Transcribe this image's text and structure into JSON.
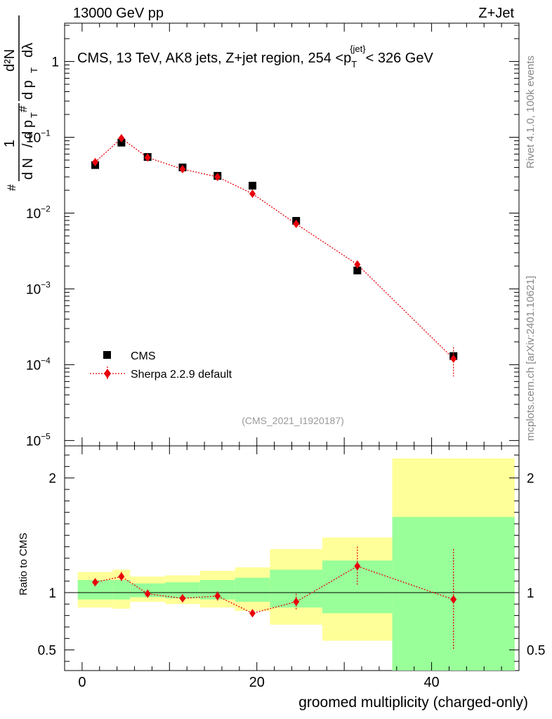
{
  "header": {
    "left": "13000 GeV pp",
    "right": "Z+Jet"
  },
  "side_labels": {
    "top": "Rivet 4.1.0,  100k events",
    "bottom": "mcplots.cern.ch [arXiv:2401.10621]"
  },
  "chart_data": {
    "type": "scatter",
    "title": "CMS, 13 TeV, AK8 jets, Z+jet region, 254 <p_T^{jet}< 326 GeV",
    "title_main": "CMS, 13 TeV, AK8 jets, Z+jet region, 254 <p",
    "title_sub": "T",
    "title_sup": "{jet}",
    "title_tail": "< 326 GeV",
    "analysis_tag": "(CMS_2021_I1920187)",
    "xlabel": "groomed multiplicity (charged-only)",
    "ylabel_main": "1 / N  dN / d p_T  d²N / d p_T dλ",
    "ylabel_parts": {
      "hash": "#",
      "one": "1",
      "dN": "d N",
      "slash": "/",
      "d": "d",
      "p": "p",
      "T": "T",
      "d2N": "d²N",
      "dpT": "d p",
      "dlambda": "dλ"
    },
    "ylabel_ratio": "Ratio to CMS",
    "xlim": [
      -2,
      50
    ],
    "ylim_main": [
      8.5e-06,
      3.2
    ],
    "ylim_ratio": [
      0.32,
      2.28
    ],
    "x_ticks": [
      {
        "value": 0,
        "label": "0"
      },
      {
        "value": 20,
        "label": "20"
      },
      {
        "value": 40,
        "label": "40"
      }
    ],
    "y_ticks_main": [
      {
        "value": 1,
        "base": "1",
        "exp": ""
      },
      {
        "value": 0.1,
        "base": "10",
        "exp": "−1"
      },
      {
        "value": 0.01,
        "base": "10",
        "exp": "−2"
      },
      {
        "value": 0.001,
        "base": "10",
        "exp": "−3"
      },
      {
        "value": 0.0001,
        "base": "10",
        "exp": "−4"
      },
      {
        "value": 1e-05,
        "base": "10",
        "exp": "−5"
      }
    ],
    "y_ticks_ratio": [
      {
        "value": 2,
        "label": "2"
      },
      {
        "value": 1,
        "label": "1"
      },
      {
        "value": 0.5,
        "label": "0.5"
      }
    ],
    "legend": {
      "placement": "lower-left",
      "entries": [
        {
          "label": "CMS",
          "marker": "square",
          "color": "#000000"
        },
        {
          "label": "Sherpa 2.2.9 default",
          "marker": "diamond",
          "color": "#e8000b"
        }
      ]
    },
    "series": [
      {
        "name": "CMS",
        "color": "#000000",
        "x": [
          1.5,
          4.5,
          7.5,
          11.5,
          15.5,
          19.5,
          24.5,
          31.5,
          42.5
        ],
        "y": [
          0.043,
          0.085,
          0.055,
          0.04,
          0.031,
          0.023,
          0.0079,
          0.00175,
          0.00013
        ]
      },
      {
        "name": "Sherpa 2.2.9 default",
        "color": "#e8000b",
        "x": [
          1.5,
          4.5,
          7.5,
          11.5,
          15.5,
          19.5,
          24.5,
          31.5,
          42.5
        ],
        "y": [
          0.047,
          0.097,
          0.054,
          0.038,
          0.03,
          0.018,
          0.0072,
          0.0021,
          0.00012
        ],
        "y_err": [
          0.0015,
          0.003,
          0.0015,
          0.001,
          0.0009,
          0.0006,
          0.0003,
          0.00015,
          5e-05
        ]
      }
    ],
    "ratio": {
      "x": [
        1.5,
        4.5,
        7.5,
        11.5,
        15.5,
        19.5,
        24.5,
        31.5,
        42.5
      ],
      "sherpa": [
        1.09,
        1.14,
        0.99,
        0.95,
        0.97,
        0.82,
        0.92,
        1.23,
        0.94
      ],
      "err": [
        0.035,
        0.04,
        0.035,
        0.035,
        0.04,
        0.035,
        0.07,
        0.17,
        0.44
      ],
      "bins": [
        {
          "lo": -0.5,
          "hi": 3.5,
          "green": [
            0.94,
            1.11
          ],
          "yellow": [
            0.87,
            1.18
          ]
        },
        {
          "lo": 3.5,
          "hi": 5.5,
          "green": [
            0.94,
            1.11
          ],
          "yellow": [
            0.86,
            1.2
          ]
        },
        {
          "lo": 5.5,
          "hi": 9.5,
          "green": [
            0.96,
            1.08
          ],
          "yellow": [
            0.92,
            1.14
          ]
        },
        {
          "lo": 9.5,
          "hi": 13.5,
          "green": [
            0.95,
            1.09
          ],
          "yellow": [
            0.9,
            1.15
          ]
        },
        {
          "lo": 13.5,
          "hi": 17.5,
          "green": [
            0.94,
            1.11
          ],
          "yellow": [
            0.87,
            1.19
          ]
        },
        {
          "lo": 17.5,
          "hi": 21.5,
          "green": [
            0.92,
            1.13
          ],
          "yellow": [
            0.84,
            1.22
          ]
        },
        {
          "lo": 21.5,
          "hi": 27.5,
          "green": [
            0.87,
            1.2
          ],
          "yellow": [
            0.72,
            1.38
          ]
        },
        {
          "lo": 27.5,
          "hi": 35.5,
          "green": [
            0.82,
            1.28
          ],
          "yellow": [
            0.58,
            1.48
          ]
        },
        {
          "lo": 35.5,
          "hi": 49.5,
          "green": [
            0.32,
            1.66
          ],
          "yellow": [
            0.32,
            2.17
          ]
        }
      ]
    }
  }
}
